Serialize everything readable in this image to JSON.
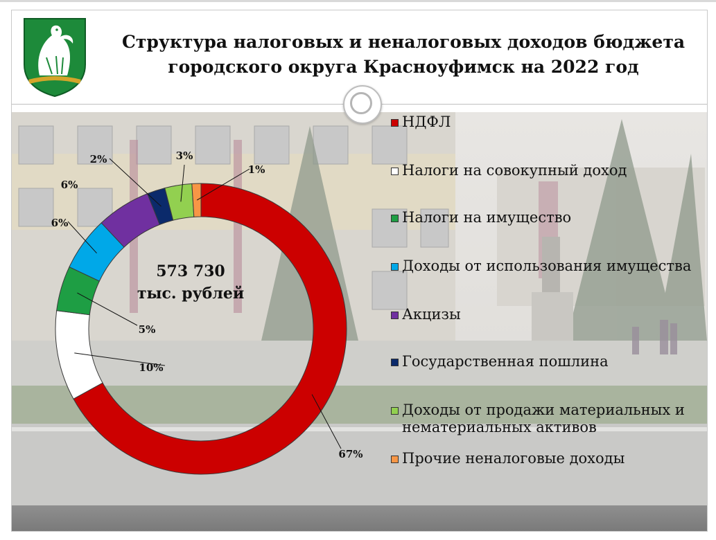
{
  "title": {
    "line1": "Структура налоговых и неналоговых доходов бюджета",
    "line2": "городского округа Красноуфимск на 2022 год"
  },
  "center": {
    "value": "573 730",
    "unit": "тыс. рублей"
  },
  "emblem": {
    "icon": "eagle-coat-of-arms-icon",
    "colors": [
      "#1d8a3a",
      "#ffffff",
      "#d4a52a"
    ]
  },
  "chart_data": {
    "type": "donut",
    "start_angle_deg": 0,
    "direction": "clockwise",
    "series": [
      {
        "name": "НДФЛ",
        "value": 67,
        "label": "67%",
        "color": "#cc0000"
      },
      {
        "name": "Налоги на совокупный доход",
        "value": 10,
        "label": "10%",
        "color": "#ffffff"
      },
      {
        "name": "Налоги на имущество",
        "value": 5,
        "label": "5%",
        "color": "#1e9e44"
      },
      {
        "name": "Доходы от использования имущества",
        "value": 6,
        "label": "6%",
        "color": "#00a8e8"
      },
      {
        "name": "Акцизы",
        "value": 6,
        "label": "6%",
        "color": "#7030a0"
      },
      {
        "name": "Государственная пошлина",
        "value": 2,
        "label": "2%",
        "color": "#0b2a6b"
      },
      {
        "name": "Доходы от продажи материальных и нематериальных активов",
        "value": 3,
        "label": "3%",
        "color": "#92d050"
      },
      {
        "name": "Прочие неналоговые доходы",
        "value": 1,
        "label": "1%",
        "color": "#f79646"
      }
    ],
    "legend": [
      {
        "label": "НДФЛ"
      },
      {
        "label": "Налоги на совокупный доход"
      },
      {
        "label": "Налоги на имущество"
      },
      {
        "label": "Доходы от использования имущества"
      },
      {
        "label": "Акцизы"
      },
      {
        "label": "Государственная пошлина"
      },
      {
        "label": "Доходы от продажи материальных и нематериальных активов"
      },
      {
        "label": "Прочие неналоговые доходы"
      }
    ],
    "legend_position": "right"
  }
}
